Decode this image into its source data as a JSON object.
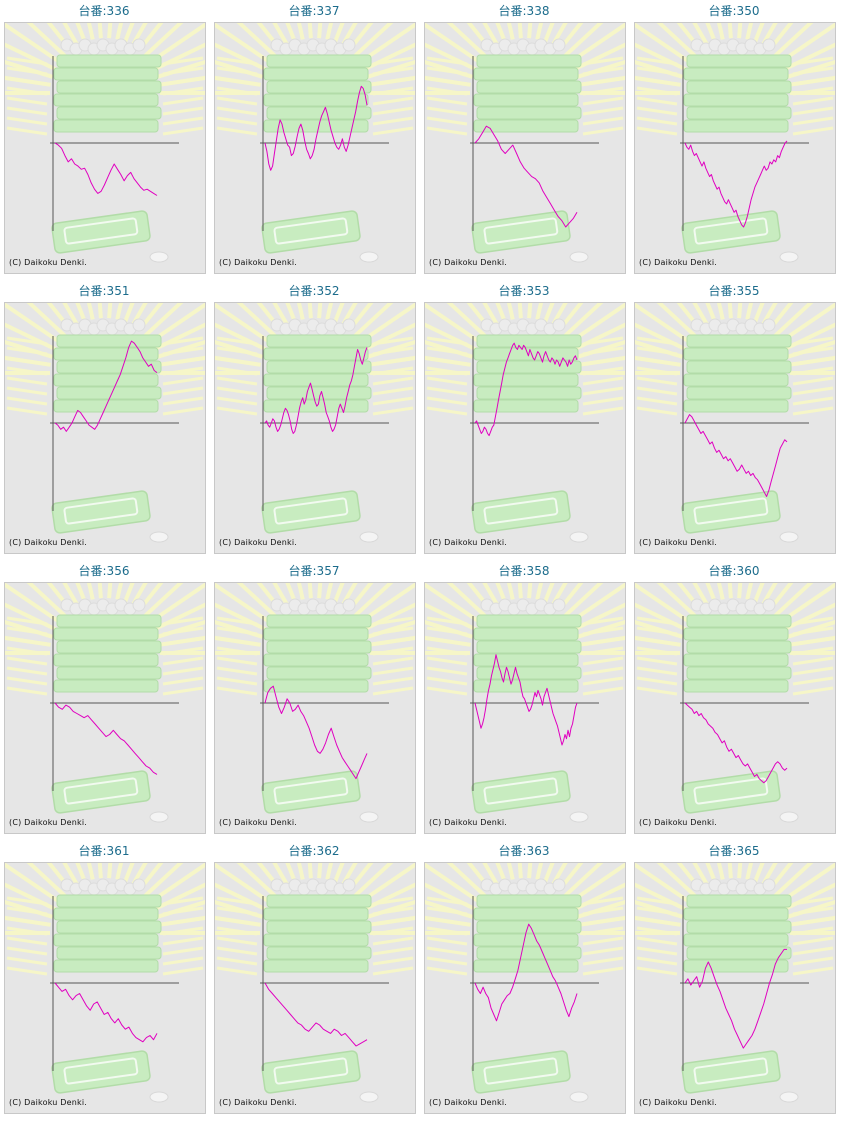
{
  "colors": {
    "title": "#1c6c8c",
    "series_line": "#e000c0",
    "axis": "#555555",
    "panel_bg": "#e6e6e6",
    "panel_border": "#c8c8c8",
    "watermark_green": "#c8ecc0",
    "watermark_rays": "#f6f6c8"
  },
  "chart_data": [
    {
      "type": "line",
      "title": "台番:336",
      "copyright": "(C) Daikoku Denki.",
      "y": [
        0,
        -2,
        -5,
        -12,
        -18,
        -15,
        -20,
        -22,
        -25,
        -24,
        -30,
        -38,
        -44,
        -48,
        -46,
        -40,
        -33,
        -26,
        -20,
        -25,
        -30,
        -36,
        -31,
        -28,
        -34,
        -38,
        -42,
        -45,
        -44,
        -46,
        -48,
        -50
      ]
    },
    {
      "type": "line",
      "title": "台番:337",
      "copyright": "(C) Daikoku Denki.",
      "y": [
        0,
        -8,
        -20,
        -26,
        -22,
        -10,
        2,
        14,
        22,
        18,
        10,
        4,
        -2,
        -4,
        -12,
        -10,
        -3,
        6,
        14,
        18,
        12,
        2,
        -6,
        -10,
        -15,
        -12,
        -6,
        4,
        12,
        20,
        26,
        30,
        34,
        28,
        20,
        12,
        6,
        0,
        -4,
        -6,
        -2,
        4,
        -4,
        -8,
        -2,
        6,
        14,
        22,
        30,
        40,
        48,
        54,
        52,
        46,
        36
      ]
    },
    {
      "type": "line",
      "title": "台番:338",
      "copyright": "(C) Daikoku Denki.",
      "y": [
        0,
        4,
        10,
        16,
        14,
        8,
        2,
        -6,
        -10,
        -6,
        -2,
        -10,
        -18,
        -24,
        -28,
        -32,
        -34,
        -38,
        -46,
        -52,
        -58,
        -64,
        -70,
        -74,
        -80,
        -76,
        -72,
        -66
      ]
    },
    {
      "type": "line",
      "title": "台番:350",
      "copyright": "(C) Daikoku Denki.",
      "y": [
        0,
        -4,
        -6,
        -2,
        -8,
        -12,
        -10,
        -14,
        -18,
        -22,
        -18,
        -24,
        -28,
        -32,
        -30,
        -36,
        -40,
        -44,
        -42,
        -48,
        -52,
        -56,
        -58,
        -54,
        -58,
        -62,
        -66,
        -64,
        -70,
        -74,
        -78,
        -80,
        -76,
        -70,
        -62,
        -54,
        -48,
        -42,
        -38,
        -34,
        -30,
        -26,
        -22,
        -26,
        -24,
        -18,
        -20,
        -16,
        -18,
        -12,
        -14,
        -8,
        -4,
        0,
        2
      ]
    },
    {
      "type": "line",
      "title": "台番:351",
      "copyright": "(C) Daikoku Denki.",
      "y": [
        0,
        -2,
        -6,
        -4,
        -8,
        -4,
        0,
        6,
        12,
        10,
        6,
        2,
        -2,
        -4,
        -6,
        -2,
        4,
        10,
        16,
        22,
        28,
        34,
        40,
        46,
        54,
        62,
        72,
        78,
        76,
        72,
        68,
        62,
        58,
        54,
        56,
        50,
        48
      ]
    },
    {
      "type": "line",
      "title": "台番:352",
      "copyright": "(C) Daikoku Denki.",
      "y": [
        0,
        2,
        -2,
        -4,
        0,
        4,
        2,
        -4,
        -8,
        -6,
        -2,
        4,
        10,
        14,
        12,
        8,
        2,
        -6,
        -10,
        -8,
        -2,
        6,
        14,
        20,
        24,
        18,
        22,
        30,
        34,
        38,
        32,
        26,
        20,
        16,
        18,
        26,
        30,
        24,
        18,
        10,
        6,
        2,
        -4,
        -8,
        -6,
        -2,
        6,
        14,
        18,
        14,
        10,
        16,
        24,
        30,
        36,
        40,
        46,
        54,
        62,
        70,
        66,
        60,
        56,
        62,
        68,
        72
      ]
    },
    {
      "type": "line",
      "title": "台番:353",
      "copyright": "(C) Daikoku Denki.",
      "y": [
        0,
        2,
        -2,
        -6,
        -10,
        -8,
        -4,
        -6,
        -10,
        -12,
        -8,
        -4,
        -2,
        6,
        14,
        22,
        30,
        38,
        46,
        52,
        58,
        62,
        66,
        70,
        74,
        76,
        72,
        70,
        74,
        72,
        70,
        74,
        72,
        68,
        64,
        70,
        66,
        62,
        60,
        64,
        68,
        66,
        62,
        58,
        64,
        68,
        64,
        60,
        58,
        62,
        60,
        56,
        60,
        58,
        54,
        58,
        62,
        60,
        58,
        54,
        60,
        56,
        58,
        62,
        64,
        60
      ]
    },
    {
      "type": "line",
      "title": "台番:355",
      "copyright": "(C) Daikoku Denki.",
      "y": [
        0,
        4,
        8,
        6,
        2,
        -2,
        -6,
        -10,
        -8,
        -12,
        -16,
        -20,
        -18,
        -24,
        -28,
        -26,
        -30,
        -34,
        -32,
        -36,
        -34,
        -38,
        -42,
        -46,
        -44,
        -40,
        -44,
        -48,
        -46,
        -50,
        -48,
        -52,
        -54,
        -58,
        -62,
        -66,
        -70,
        -64,
        -56,
        -48,
        -40,
        -32,
        -24,
        -20,
        -16,
        -18
      ]
    },
    {
      "type": "line",
      "title": "台番:356",
      "copyright": "(C) Daikoku Denki.",
      "y": [
        0,
        -4,
        -6,
        -2,
        -4,
        -8,
        -10,
        -12,
        -14,
        -12,
        -16,
        -20,
        -24,
        -28,
        -32,
        -30,
        -26,
        -30,
        -34,
        -36,
        -40,
        -44,
        -48,
        -52,
        -56,
        -60,
        -62,
        -66,
        -68
      ]
    },
    {
      "type": "line",
      "title": "台番:357",
      "copyright": "(C) Daikoku Denki.",
      "y": [
        0,
        10,
        14,
        16,
        6,
        -4,
        -10,
        -4,
        4,
        0,
        -8,
        -6,
        -2,
        -8,
        -12,
        -18,
        -24,
        -32,
        -40,
        -46,
        -48,
        -44,
        -38,
        -30,
        -24,
        -32,
        -40,
        -46,
        -52,
        -56,
        -60,
        -64,
        -68,
        -72,
        -66,
        -60,
        -54,
        -48
      ]
    },
    {
      "type": "line",
      "title": "台番:358",
      "copyright": "(C) Daikoku Denki.",
      "y": [
        0,
        -6,
        -12,
        -18,
        -24,
        -20,
        -14,
        -6,
        4,
        12,
        18,
        26,
        32,
        38,
        46,
        40,
        34,
        30,
        24,
        20,
        28,
        34,
        30,
        24,
        18,
        22,
        28,
        34,
        28,
        24,
        20,
        12,
        6,
        4,
        0,
        -4,
        -8,
        -6,
        -2,
        4,
        10,
        6,
        12,
        8,
        4,
        -2,
        6,
        10,
        14,
        8,
        2,
        -4,
        -10,
        -14,
        -18,
        -22,
        -28,
        -34,
        -40,
        -36,
        -30,
        -34,
        -26,
        -32,
        -24,
        -20,
        -12,
        -4,
        0
      ]
    },
    {
      "type": "line",
      "title": "台番:360",
      "copyright": "(C) Daikoku Denki.",
      "y": [
        0,
        -2,
        -4,
        -6,
        -10,
        -8,
        -12,
        -10,
        -14,
        -16,
        -20,
        -22,
        -24,
        -28,
        -30,
        -34,
        -38,
        -36,
        -42,
        -46,
        -44,
        -48,
        -52,
        -50,
        -54,
        -58,
        -60,
        -58,
        -62,
        -66,
        -70,
        -68,
        -72,
        -74,
        -76,
        -74,
        -70,
        -66,
        -62,
        -58,
        -56,
        -58,
        -62,
        -64,
        -62
      ]
    },
    {
      "type": "line",
      "title": "台番:361",
      "copyright": "(C) Daikoku Denki.",
      "y": [
        0,
        -4,
        -8,
        -6,
        -12,
        -16,
        -12,
        -10,
        -16,
        -22,
        -26,
        -20,
        -18,
        -24,
        -30,
        -28,
        -34,
        -38,
        -34,
        -40,
        -44,
        -42,
        -48,
        -52,
        -54,
        -56,
        -52,
        -50,
        -54,
        -48
      ]
    },
    {
      "type": "line",
      "title": "台番:362",
      "copyright": "(C) Daikoku Denki.",
      "y": [
        0,
        -6,
        -10,
        -14,
        -18,
        -22,
        -26,
        -30,
        -34,
        -38,
        -40,
        -44,
        -46,
        -42,
        -38,
        -40,
        -44,
        -46,
        -48,
        -44,
        -46,
        -50,
        -48,
        -52,
        -56,
        -60,
        -58,
        -56,
        -54
      ]
    },
    {
      "type": "line",
      "title": "台番:363",
      "copyright": "(C) Daikoku Denki.",
      "y": [
        0,
        -6,
        -10,
        -4,
        -10,
        -14,
        -24,
        -30,
        -36,
        -28,
        -20,
        -16,
        -12,
        -10,
        -4,
        4,
        12,
        24,
        36,
        48,
        56,
        52,
        46,
        40,
        36,
        30,
        24,
        18,
        12,
        6,
        2,
        -4,
        -10,
        -18,
        -26,
        -32,
        -24,
        -18,
        -10
      ]
    },
    {
      "type": "line",
      "title": "台番:365",
      "copyright": "(C) Daikoku Denki.",
      "y": [
        0,
        4,
        -2,
        2,
        6,
        -4,
        2,
        14,
        20,
        14,
        6,
        -2,
        -8,
        -16,
        -24,
        -30,
        -36,
        -44,
        -50,
        -56,
        -62,
        -58,
        -54,
        -50,
        -44,
        -36,
        -28,
        -20,
        -10,
        0,
        8,
        18,
        24,
        28,
        32,
        32
      ]
    }
  ]
}
